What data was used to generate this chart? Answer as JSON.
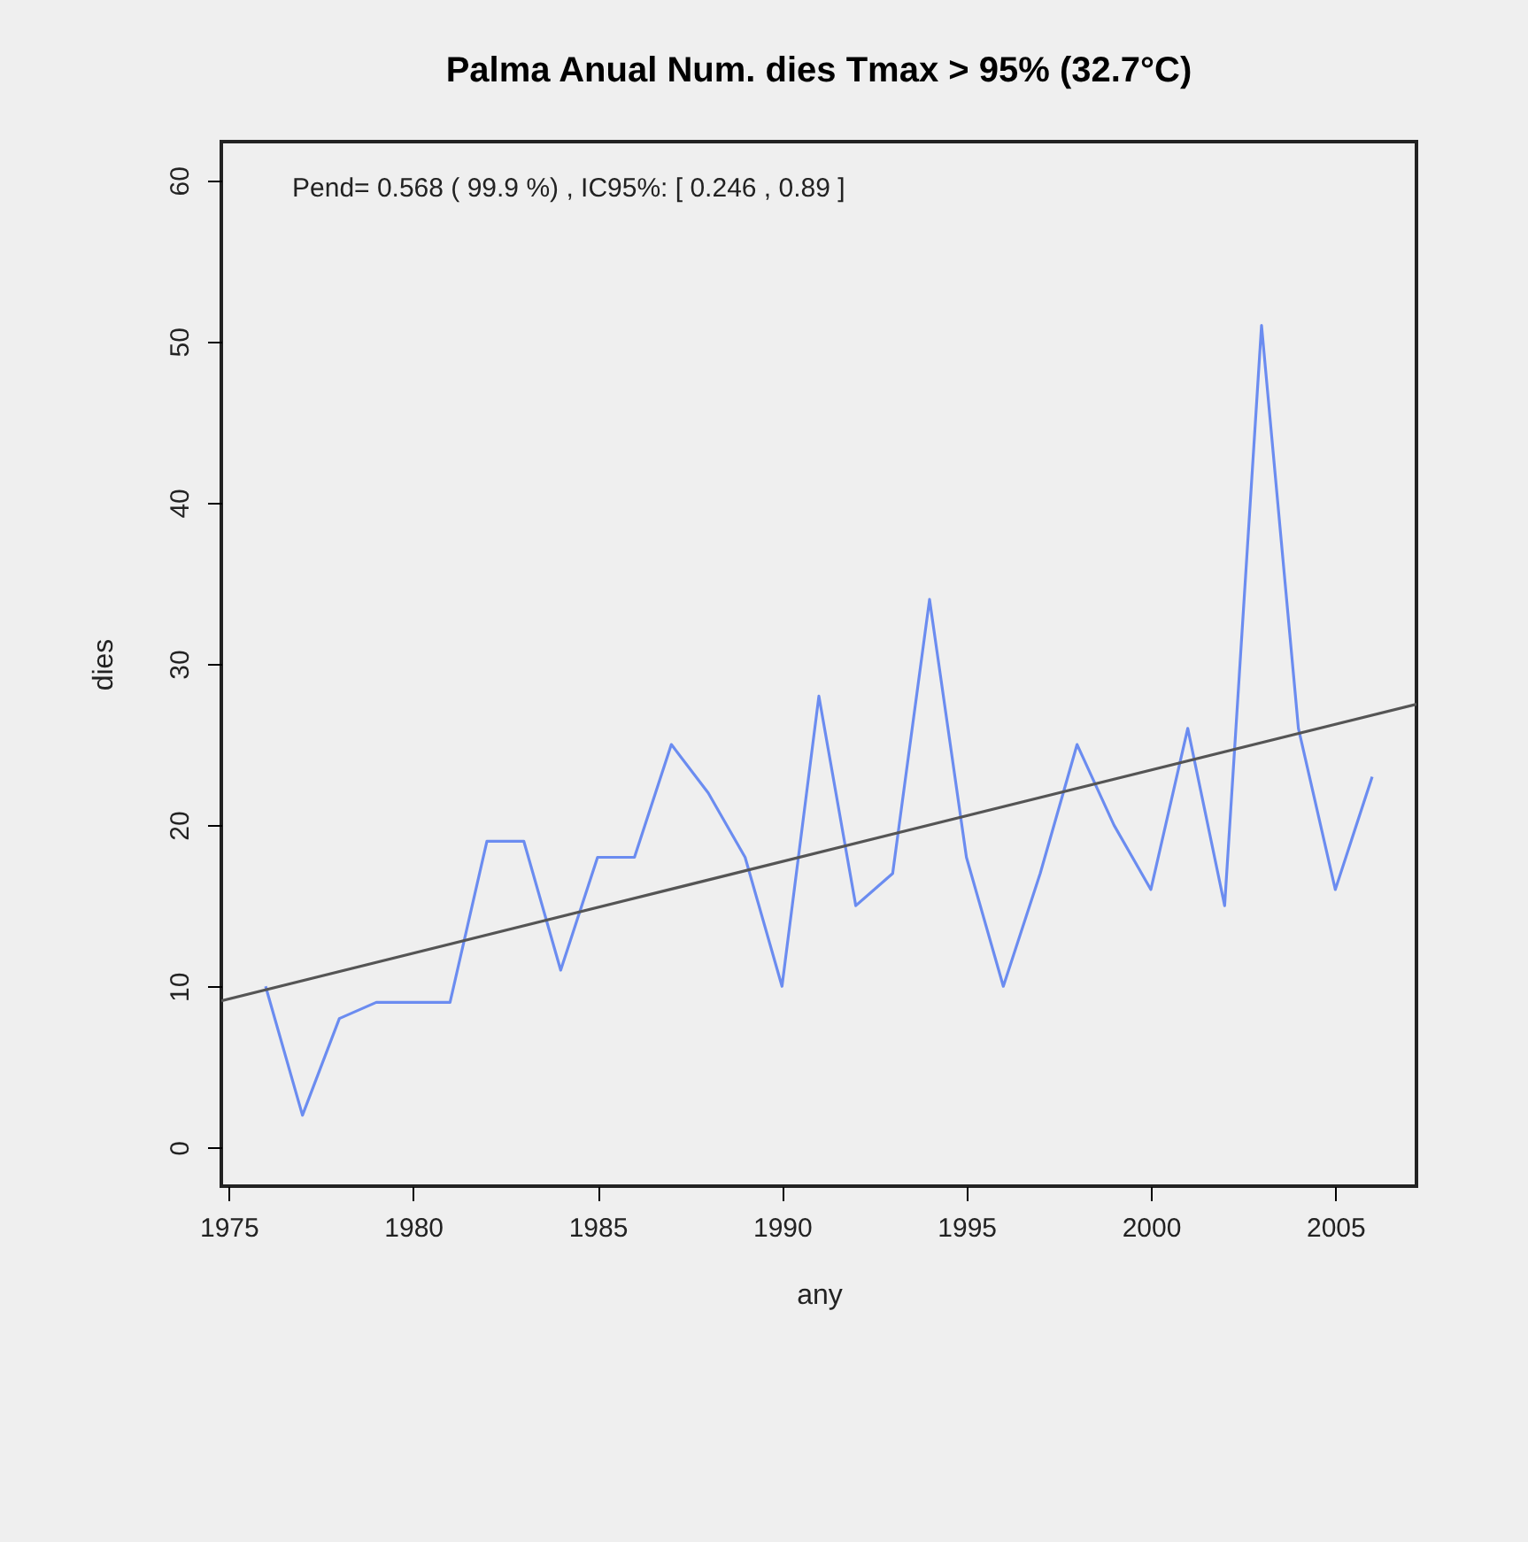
{
  "chart_data": {
    "type": "line",
    "title": "Palma Anual Num. dies Tmax > 95% (32.7°C)",
    "xlabel": "any",
    "ylabel": "dies",
    "x": [
      1976,
      1977,
      1978,
      1979,
      1980,
      1981,
      1982,
      1983,
      1984,
      1985,
      1986,
      1987,
      1988,
      1989,
      1990,
      1991,
      1992,
      1993,
      1994,
      1995,
      1996,
      1997,
      1998,
      1999,
      2000,
      2001,
      2002,
      2003,
      2004,
      2005,
      2006
    ],
    "series": [
      {
        "color": "#6b8cf0",
        "values": [
          10,
          2,
          8,
          9,
          9,
          9,
          19,
          19,
          11,
          18,
          18,
          25,
          22,
          18,
          10,
          28,
          15,
          17,
          34,
          18,
          10,
          17,
          25,
          20,
          16,
          26,
          15,
          51,
          26,
          16,
          23
        ]
      },
      {
        "type": "line",
        "color": "#555555",
        "x": [
          1974.8,
          2007.2
        ],
        "values": [
          9.1,
          27.5
        ]
      }
    ],
    "xlim": [
      1974.8,
      2007.2
    ],
    "ylim": [
      -2.4,
      62.4
    ],
    "xticks": [
      1975,
      1980,
      1985,
      1990,
      1995,
      2000,
      2005
    ],
    "yticks": [
      0,
      10,
      20,
      30,
      40,
      50,
      60
    ],
    "grid": false,
    "marker": "none",
    "line_style": "solid",
    "annotations": [
      "Pend= 0.568 ( 99.9 %) , IC95%: [ 0.246 , 0.89 ]"
    ]
  }
}
